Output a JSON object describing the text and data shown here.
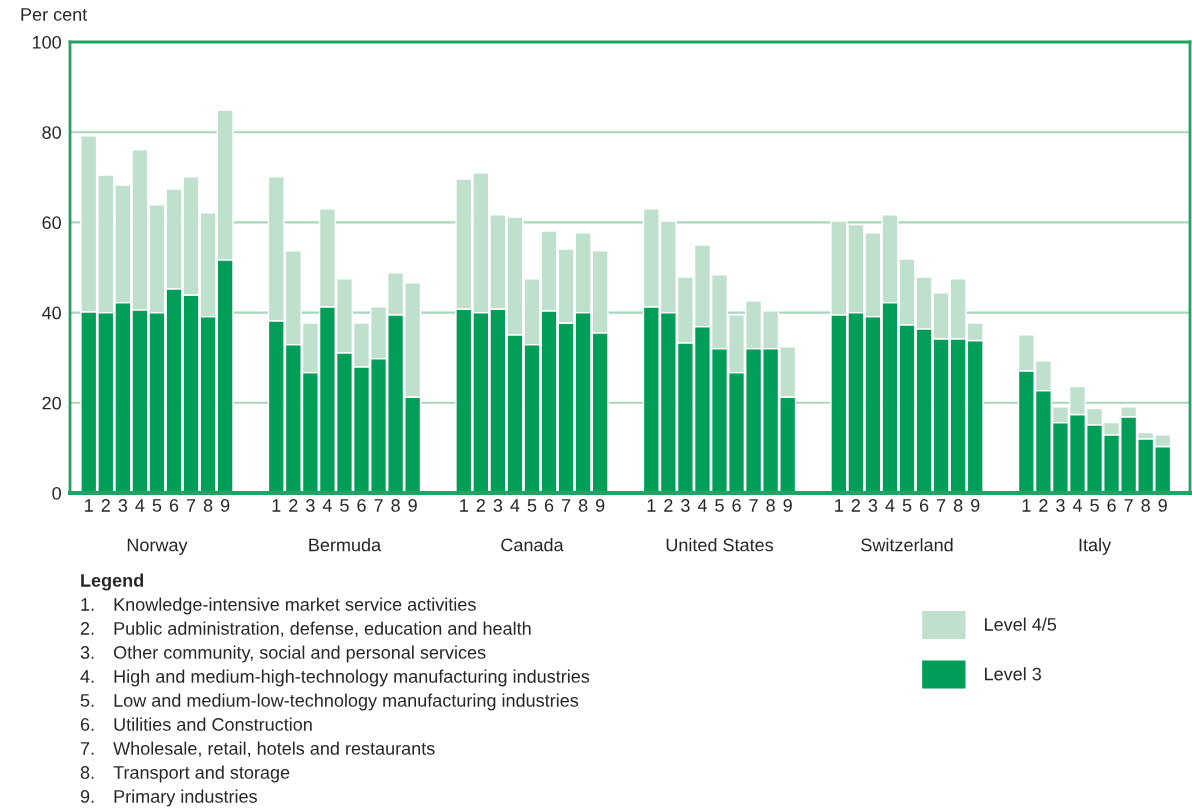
{
  "chart_data": {
    "type": "bar",
    "stacked": true,
    "ylabel": "Per cent",
    "categories": [
      "1",
      "2",
      "3",
      "4",
      "5",
      "6",
      "7",
      "8",
      "9",
      null,
      null,
      "1",
      "2",
      "3",
      "4",
      "5",
      "6",
      "7",
      "8",
      "9",
      null,
      null,
      "1",
      "2",
      "3",
      "4",
      "5",
      "6",
      "7",
      "8",
      "9",
      null,
      null,
      "1",
      "2",
      "3",
      "4",
      "5",
      "6",
      "7",
      "8",
      "9",
      null,
      null,
      "1",
      "2",
      "3",
      "4",
      "5",
      "6",
      "7",
      "8",
      "9",
      null,
      null,
      "1",
      "2",
      "3",
      "4",
      "5",
      "6",
      "7",
      "8",
      "9"
    ],
    "series": [
      {
        "name": "Level 3",
        "color": "#009e56",
        "values": [
          40.2,
          40.0,
          42.2,
          40.6,
          40.0,
          45.3,
          43.9,
          39.1,
          51.7,
          null,
          null,
          38.2,
          32.9,
          26.7,
          41.3,
          31.1,
          28.0,
          29.8,
          39.5,
          21.3,
          null,
          null,
          40.8,
          40.0,
          40.8,
          35.1,
          32.9,
          40.4,
          37.7,
          40.0,
          35.5,
          null,
          null,
          41.3,
          40.0,
          33.3,
          36.9,
          32.0,
          26.7,
          32.0,
          32.0,
          21.3,
          null,
          null,
          39.5,
          40.0,
          39.1,
          42.2,
          37.3,
          36.4,
          34.2,
          34.2,
          33.8,
          null,
          null,
          27.1,
          22.7,
          15.6,
          17.4,
          15.1,
          12.9,
          16.9,
          12.0,
          10.3
        ]
      },
      {
        "name": "Level 4/5",
        "color": "#bfe0cd",
        "values": [
          39.0,
          30.5,
          26.1,
          35.5,
          23.9,
          22.1,
          26.2,
          23.0,
          33.2,
          null,
          null,
          31.9,
          20.8,
          11.0,
          21.7,
          16.4,
          9.7,
          11.5,
          9.3,
          25.3,
          null,
          null,
          28.8,
          31.0,
          20.9,
          26.1,
          14.6,
          17.7,
          16.4,
          17.7,
          18.2,
          null,
          null,
          21.7,
          20.3,
          14.6,
          18.1,
          16.4,
          12.8,
          10.6,
          8.4,
          11.1,
          null,
          null,
          20.8,
          19.5,
          18.6,
          19.5,
          14.6,
          11.5,
          10.2,
          13.3,
          3.9,
          null,
          null,
          8.0,
          6.6,
          3.5,
          6.2,
          3.6,
          2.7,
          2.2,
          1.4,
          2.6
        ]
      }
    ],
    "ylim": [
      0,
      100
    ],
    "yticks": [
      0,
      20,
      40,
      60,
      80,
      100
    ],
    "grid": "y",
    "legend": "bottom right",
    "annotations": [
      "Norway",
      "Bermuda",
      "Canada",
      "United States",
      "Switzerland",
      "Italy",
      "Legend",
      "1. Knowledge-intensive market service activities",
      "2. Public administration, defense, education and health",
      "3. Other community, social and personal services",
      "4. High and medium-high-technology manufacturing industries",
      "5. Low and medium-low-technology manufacturing industries",
      "6. Utilities and Construction",
      "7. Wholesale, retail, hotels and restaurants",
      "8. Transport and storage",
      "9. Primary industries"
    ]
  }
}
